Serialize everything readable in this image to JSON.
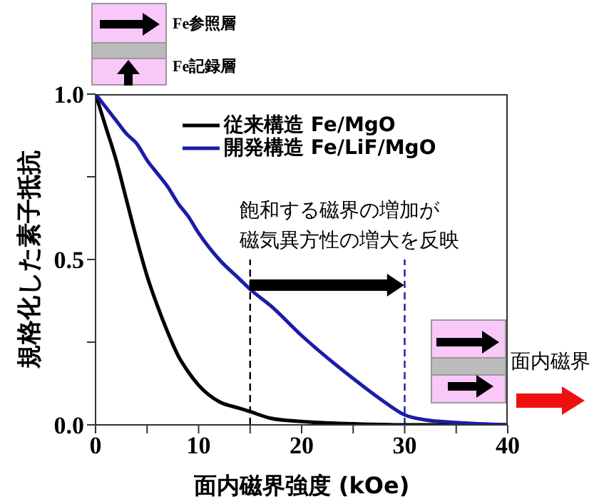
{
  "chart_data": {
    "type": "line",
    "xlabel": "面内磁界強度 (kOe)",
    "ylabel": "規格化した素子抵抗",
    "x": [
      0,
      1,
      2,
      3,
      4,
      5,
      6,
      7,
      8,
      9,
      10,
      12,
      14,
      15,
      17,
      20,
      25,
      28,
      30,
      32,
      35,
      40
    ],
    "series": [
      {
        "name": "従来構造 Fe/MgO",
        "color": "#000000",
        "values": [
          1,
          0.9,
          0.8,
          0.68,
          0.56,
          0.45,
          0.36,
          0.28,
          0.21,
          0.16,
          0.12,
          0.07,
          0.05,
          0.04,
          0.02,
          0.01,
          0.003,
          0.001,
          0,
          0,
          0,
          0
        ]
      },
      {
        "name": "開発構造 Fe/LiF/MgO",
        "color": "#1c1ca8",
        "values": [
          1,
          0.96,
          0.92,
          0.88,
          0.85,
          0.8,
          0.76,
          0.72,
          0.67,
          0.63,
          0.58,
          0.5,
          0.44,
          0.41,
          0.36,
          0.27,
          0.14,
          0.07,
          0.03,
          0.015,
          0.007,
          0
        ]
      }
    ],
    "xlim": [
      0,
      40
    ],
    "xticks": [
      0,
      {
        "value": 5,
        "label": null
      },
      10,
      {
        "value": 15,
        "label": null
      },
      20,
      {
        "value": 25,
        "label": null
      },
      30,
      {
        "value": 35,
        "label": null
      },
      40
    ],
    "ylim": [
      0,
      1
    ],
    "yticks": [
      {
        "value": 0,
        "label": "0.0"
      },
      {
        "value": 0.25,
        "label": null
      },
      {
        "value": 0.5,
        "label": "0.5"
      },
      {
        "value": 0.75,
        "label": null
      },
      {
        "value": 1,
        "label": "1.0"
      }
    ],
    "ref_lines": [
      {
        "axis": "x",
        "value": 15,
        "color": "#000000",
        "line_style": "dashed"
      },
      {
        "axis": "x",
        "value": 30,
        "color": "#1c1ca8",
        "line_style": "dashed"
      }
    ],
    "annotations": [
      "飽和する磁界の増加が",
      "磁気異方性の増大を反映",
      "Fe参照層",
      "Fe記録層",
      "面内磁界"
    ],
    "legend": "top",
    "grid": false,
    "marker": "none",
    "line_style": "solid"
  }
}
